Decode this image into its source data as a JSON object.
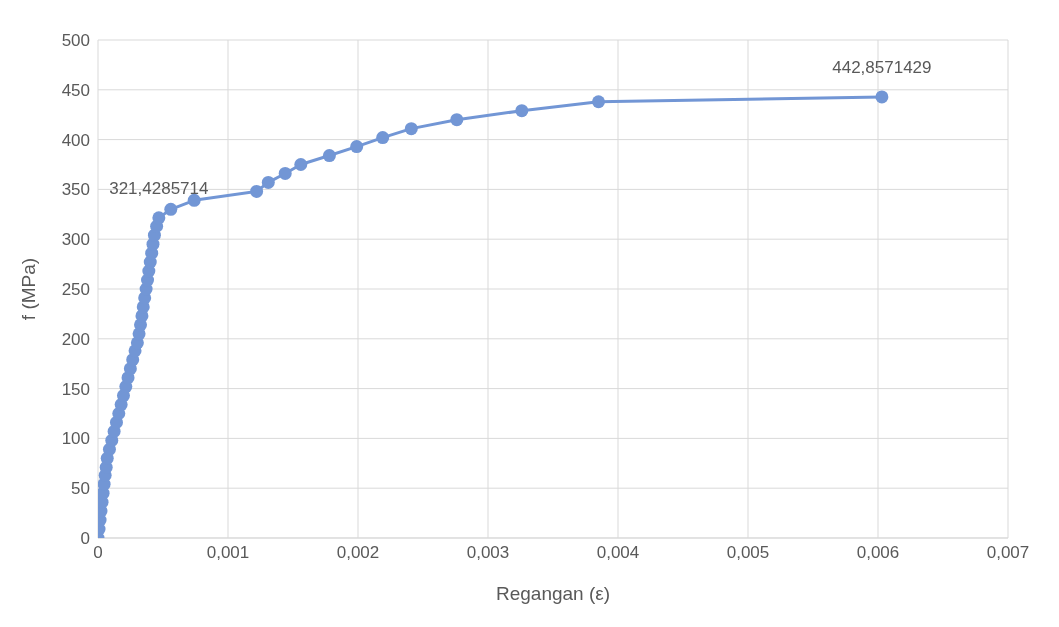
{
  "chart_data": {
    "type": "line",
    "xlabel": "Regangan (ε)",
    "ylabel": "f (MPa)",
    "xlim": [
      0,
      0.007
    ],
    "xticks": [
      0,
      {
        "value": 0.001,
        "label": "0,001"
      },
      {
        "value": 0.002,
        "label": "0,002"
      },
      {
        "value": 0.003,
        "label": "0,003"
      },
      {
        "value": 0.004,
        "label": "0,004"
      },
      {
        "value": 0.005,
        "label": "0,005"
      },
      {
        "value": 0.006,
        "label": "0,006"
      },
      {
        "value": 0.007,
        "label": "0,007"
      }
    ],
    "ylim": [
      0,
      500
    ],
    "yticks": [
      0,
      50,
      100,
      150,
      200,
      250,
      300,
      350,
      400,
      450,
      500
    ],
    "grid": true,
    "marker": "circle",
    "line_style": "solid",
    "series": [
      {
        "color": "#7296d5",
        "x": [
          0,
          8e-06,
          1.6e-05,
          2.3e-05,
          3.1e-05,
          3.9e-05,
          4.7e-05,
          5.5e-05,
          6.3e-05,
          7.1e-05,
          8.8e-05,
          0.000106,
          0.000124,
          0.000142,
          0.00016,
          0.000178,
          0.000196,
          0.000214,
          0.000231,
          0.000249,
          0.000267,
          0.000285,
          0.000303,
          0.000316,
          0.000327,
          0.000338,
          0.000348,
          0.000359,
          0.00037,
          0.000381,
          0.000391,
          0.000402,
          0.000413,
          0.000423,
          0.000434,
          0.000451,
          0.000468,
          0.00056,
          0.00074,
          0.00122,
          0.00131,
          0.00144,
          0.00156,
          0.00178,
          0.00199,
          0.00219,
          0.00241,
          0.00276,
          0.00326,
          0.00385,
          0.00603
        ],
        "values": [
          0,
          9,
          18,
          27,
          36,
          45,
          54,
          63,
          71,
          80,
          89,
          98,
          107,
          116,
          125,
          134,
          143,
          152,
          161,
          170,
          179,
          188,
          196,
          205,
          214,
          223,
          232,
          241,
          250,
          259,
          268,
          277,
          286,
          295,
          304,
          313,
          321.4285714,
          330,
          339,
          348,
          357,
          366,
          375,
          384,
          393,
          402,
          411,
          420,
          429,
          438,
          442.8571429
        ],
        "value_labels": [
          null,
          null,
          null,
          null,
          null,
          null,
          null,
          null,
          null,
          null,
          null,
          null,
          null,
          null,
          null,
          null,
          null,
          null,
          null,
          null,
          null,
          null,
          null,
          null,
          null,
          null,
          null,
          null,
          null,
          null,
          null,
          null,
          null,
          null,
          null,
          null,
          "321,4285714",
          null,
          null,
          null,
          null,
          null,
          null,
          null,
          null,
          null,
          null,
          null,
          null,
          null,
          "442,8571429"
        ]
      }
    ]
  }
}
